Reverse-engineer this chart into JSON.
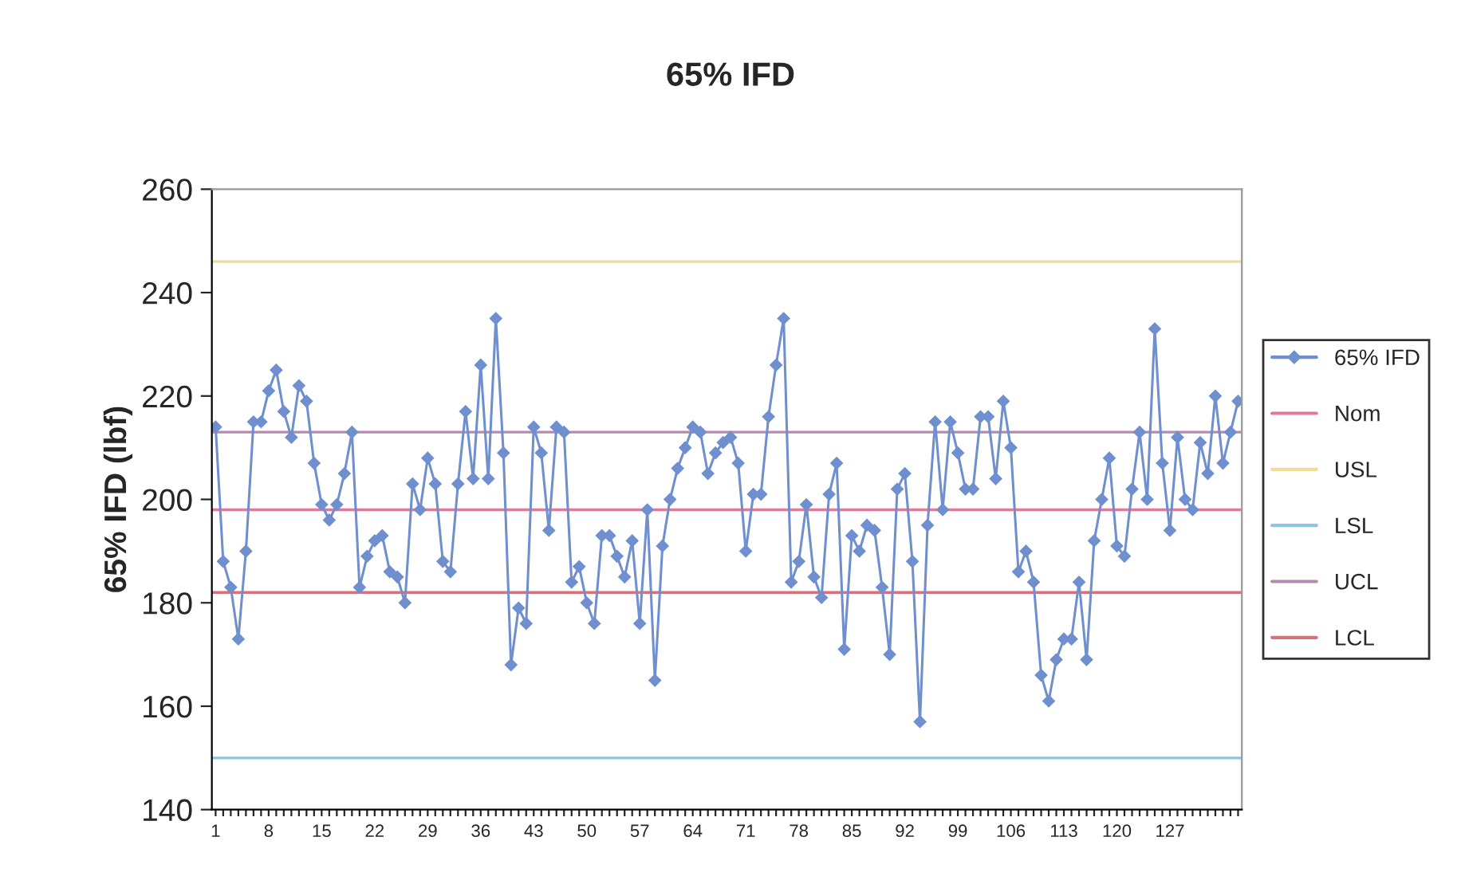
{
  "chart_data": {
    "type": "line",
    "title": "65% IFD",
    "ylabel": "65% IFD (lbf)",
    "categories": [
      "1",
      null,
      null,
      null,
      null,
      null,
      null,
      "8",
      null,
      null,
      null,
      null,
      null,
      null,
      "15",
      null,
      null,
      null,
      null,
      null,
      null,
      "22",
      null,
      null,
      null,
      null,
      null,
      null,
      "29",
      null,
      null,
      null,
      null,
      null,
      null,
      "36",
      null,
      null,
      null,
      null,
      null,
      null,
      "43",
      null,
      null,
      null,
      null,
      null,
      null,
      "50",
      null,
      null,
      null,
      null,
      null,
      null,
      "57",
      null,
      null,
      null,
      null,
      null,
      null,
      "64",
      null,
      null,
      null,
      null,
      null,
      null,
      "71",
      null,
      null,
      null,
      null,
      null,
      null,
      "78",
      null,
      null,
      null,
      null,
      null,
      null,
      "85",
      null,
      null,
      null,
      null,
      null,
      null,
      "92",
      null,
      null,
      null,
      null,
      null,
      null,
      "99",
      null,
      null,
      null,
      null,
      null,
      null,
      "106",
      null,
      null,
      null,
      null,
      null,
      null,
      "113",
      null,
      null,
      null,
      null,
      null,
      null,
      "120",
      null,
      null,
      null,
      null,
      null,
      null,
      "127",
      null,
      null,
      null,
      null,
      null,
      null,
      null,
      null,
      null
    ],
    "series": [
      {
        "name": "65% IFD",
        "color": "#6f8fcf",
        "values": [
          214,
          188,
          183,
          173,
          190,
          215,
          215,
          221,
          225,
          217,
          212,
          222,
          219,
          207,
          199,
          196,
          199,
          205,
          213,
          183,
          189,
          192,
          193,
          186,
          185,
          180,
          203,
          198,
          208,
          203,
          188,
          186,
          203,
          217,
          204,
          226,
          204,
          235,
          209,
          168,
          179,
          176,
          214,
          209,
          194,
          214,
          213,
          184,
          187,
          180,
          176,
          193,
          193,
          189,
          185,
          192,
          176,
          198,
          165,
          191,
          200,
          206,
          210,
          214,
          213,
          205,
          209,
          211,
          212,
          207,
          190,
          201,
          201,
          216,
          226,
          235,
          184,
          188,
          199,
          185,
          181,
          201,
          207,
          171,
          193,
          190,
          195,
          194,
          183,
          170,
          202,
          205,
          188,
          157,
          195,
          215,
          198,
          215,
          209,
          202,
          202,
          216,
          216,
          204,
          219,
          210,
          186,
          190,
          184,
          166,
          161,
          169,
          173,
          173,
          184,
          169,
          192,
          200,
          208,
          191,
          189,
          202,
          213,
          200,
          233,
          207,
          194,
          212,
          200,
          198,
          211,
          205,
          220,
          207,
          213,
          219
        ]
      }
    ],
    "ref_lines": [
      {
        "axis": "y",
        "value": 198,
        "label": "Nom",
        "color": "#e07a98"
      },
      {
        "axis": "y",
        "value": 246,
        "label": "USL",
        "color": "#efdc98"
      },
      {
        "axis": "y",
        "value": 150,
        "label": "LSL",
        "color": "#8cc4e6"
      },
      {
        "axis": "y",
        "value": 213,
        "label": "UCL",
        "color": "#b58aae"
      },
      {
        "axis": "y",
        "value": 182,
        "label": "LCL",
        "color": "#d8707c"
      }
    ],
    "ylim": [
      140,
      260
    ],
    "yticks": [
      140,
      160,
      180,
      200,
      220,
      240,
      260
    ],
    "marker": "diamond",
    "line_style": "solid",
    "grid": false,
    "legend": "right"
  }
}
